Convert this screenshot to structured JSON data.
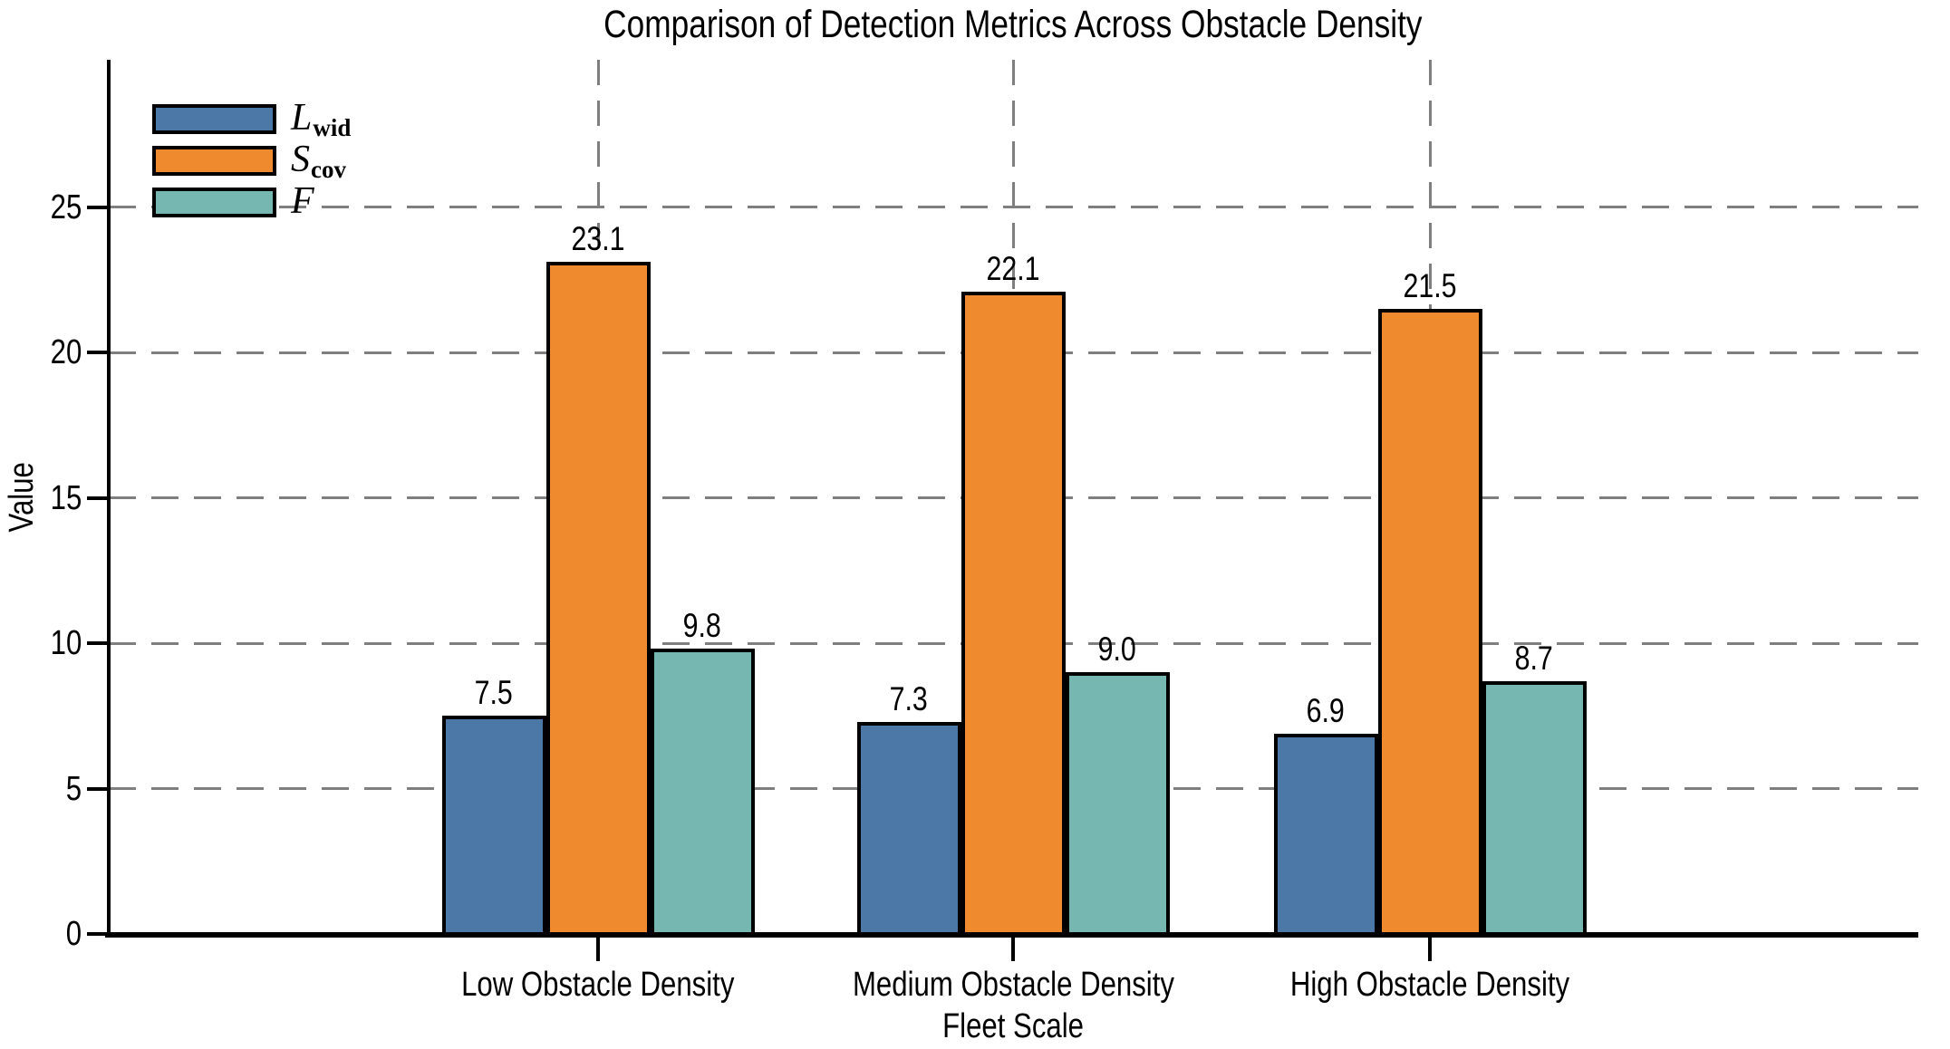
{
  "chart_data": {
    "type": "bar",
    "title": "Comparison of Detection Metrics Across Obstacle Density",
    "xlabel": "Fleet Scale",
    "ylabel": "Value",
    "categories": [
      "Low Obstacle Density",
      "Medium Obstacle Density",
      "High Obstacle Density"
    ],
    "series": [
      {
        "name": "L_wid",
        "legend_main": "L",
        "legend_sub": "wid",
        "color": "#4C78A8",
        "values": [
          7.5,
          7.3,
          6.9
        ]
      },
      {
        "name": "S_cov",
        "legend_main": "S",
        "legend_sub": "cov",
        "color": "#F08A2E",
        "values": [
          23.1,
          22.1,
          21.5
        ]
      },
      {
        "name": "F",
        "legend_main": "F",
        "legend_sub": "",
        "color": "#77B7B1",
        "values": [
          9.8,
          9.0,
          8.7
        ]
      }
    ],
    "value_labels": [
      [
        "7.5",
        "23.1",
        "9.8"
      ],
      [
        "7.3",
        "22.1",
        "9.0"
      ],
      [
        "6.9",
        "21.5",
        "8.7"
      ]
    ],
    "yticks": [
      "0",
      "5",
      "10",
      "15",
      "20",
      "25"
    ],
    "ylim": [
      0,
      30
    ],
    "grid_style": "dashed",
    "grid_color": "#7f7f7f",
    "bar_edge_color": "#000000",
    "axis_color": "#000000",
    "legend_position": "upper-left"
  }
}
